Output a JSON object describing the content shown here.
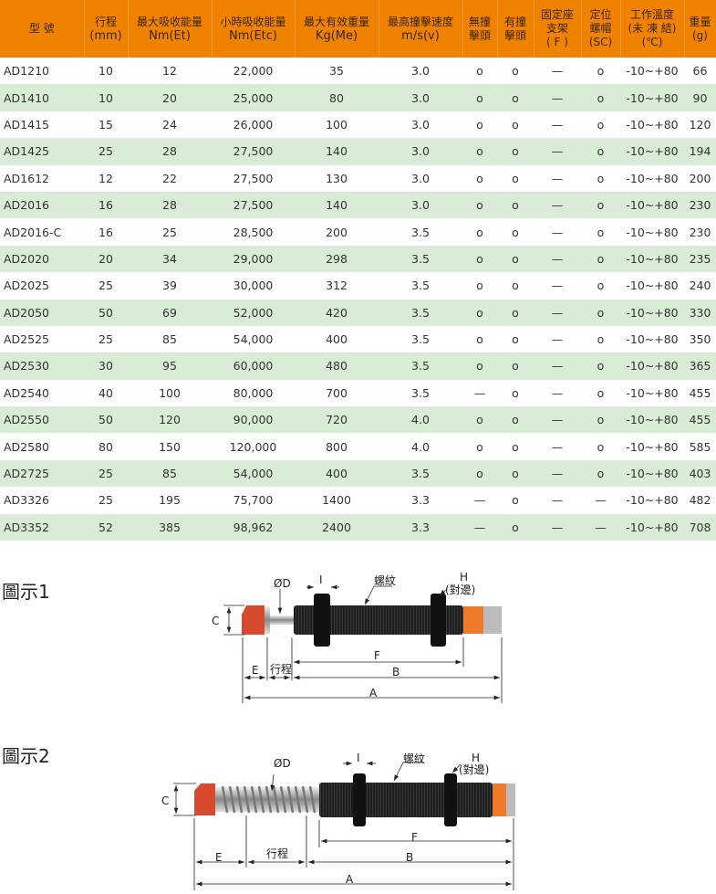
{
  "table": {
    "headers": [
      [
        "型 號"
      ],
      [
        "行程",
        "(mm)"
      ],
      [
        "最大吸收能量",
        "Nm(Et)"
      ],
      [
        "小時吸收能量",
        "Nm(Etc)"
      ],
      [
        "最大有效重量",
        "Kg(Me)"
      ],
      [
        "最高撞擊速度",
        "m/s(v)"
      ],
      [
        "無撞",
        "擊頭"
      ],
      [
        "有撞",
        "擊頭"
      ],
      [
        "固定座",
        "支架",
        "( F )"
      ],
      [
        "定位",
        "螺帽",
        "(SC)"
      ],
      [
        "工作溫度",
        "(未 凍 結)",
        "(℃)"
      ],
      [
        "重量",
        "(g)"
      ]
    ],
    "rows": [
      [
        "AD1210",
        "10",
        "12",
        "22,000",
        "35",
        "3.0",
        "o",
        "o",
        "—",
        "o",
        "-10~+80",
        "66"
      ],
      [
        "AD1410",
        "10",
        "20",
        "25,000",
        "80",
        "3.0",
        "o",
        "o",
        "—",
        "o",
        "-10~+80",
        "90"
      ],
      [
        "AD1415",
        "15",
        "24",
        "26,000",
        "100",
        "3.0",
        "o",
        "o",
        "—",
        "o",
        "-10~+80",
        "120"
      ],
      [
        "AD1425",
        "25",
        "28",
        "27,500",
        "140",
        "3.0",
        "o",
        "o",
        "—",
        "o",
        "-10~+80",
        "194"
      ],
      [
        "AD1612",
        "12",
        "22",
        "27,500",
        "130",
        "3.0",
        "o",
        "o",
        "—",
        "o",
        "-10~+80",
        "200"
      ],
      [
        "AD2016",
        "16",
        "28",
        "27,500",
        "140",
        "3.0",
        "o",
        "o",
        "—",
        "o",
        "-10~+80",
        "230"
      ],
      [
        "AD2016-C",
        "16",
        "25",
        "28,500",
        "200",
        "3.5",
        "o",
        "o",
        "—",
        "o",
        "-10~+80",
        "230"
      ],
      [
        "AD2020",
        "20",
        "34",
        "29,000",
        "298",
        "3.5",
        "o",
        "o",
        "—",
        "o",
        "-10~+80",
        "235"
      ],
      [
        "AD2025",
        "25",
        "39",
        "30,000",
        "312",
        "3.5",
        "o",
        "o",
        "—",
        "o",
        "-10~+80",
        "240"
      ],
      [
        "AD2050",
        "50",
        "69",
        "52,000",
        "420",
        "3.5",
        "o",
        "o",
        "—",
        "o",
        "-10~+80",
        "330"
      ],
      [
        "AD2525",
        "25",
        "85",
        "54,000",
        "400",
        "3.5",
        "o",
        "o",
        "—",
        "o",
        "-10~+80",
        "350"
      ],
      [
        "AD2530",
        "30",
        "95",
        "60,000",
        "480",
        "3.5",
        "o",
        "o",
        "—",
        "o",
        "-10~+80",
        "365"
      ],
      [
        "AD2540",
        "40",
        "100",
        "80,000",
        "700",
        "3.5",
        "—",
        "o",
        "—",
        "o",
        "-10~+80",
        "455"
      ],
      [
        "AD2550",
        "50",
        "120",
        "90,000",
        "720",
        "4.0",
        "o",
        "o",
        "—",
        "o",
        "-10~+80",
        "455"
      ],
      [
        "AD2580",
        "80",
        "150",
        "120,000",
        "800",
        "4.0",
        "o",
        "o",
        "—",
        "o",
        "-10~+80",
        "585"
      ],
      [
        "AD2725",
        "25",
        "85",
        "54,000",
        "400",
        "3.5",
        "o",
        "o",
        "—",
        "o",
        "-10~+80",
        "403"
      ],
      [
        "AD3326",
        "25",
        "195",
        "75,700",
        "1400",
        "3.3",
        "—",
        "o",
        "—",
        "—",
        "-10~+80",
        "482"
      ],
      [
        "AD3352",
        "52",
        "385",
        "98,962",
        "2400",
        "3.3",
        "—",
        "o",
        "—",
        "—",
        "-10~+80",
        "708"
      ]
    ]
  },
  "figure1": {
    "title": "圖示1",
    "labels": {
      "C": "C",
      "D": "ØD",
      "I": "I",
      "thread": "螺紋",
      "H": "H",
      "H_sub": "(對邊)",
      "F": "F",
      "B": "B",
      "E": "E",
      "stroke": "行程",
      "A": "A"
    }
  },
  "figure2": {
    "title": "圖示2",
    "labels": {
      "C": "C",
      "D": "ØD",
      "I": "I",
      "thread": "螺紋",
      "H": "H",
      "H_sub": "(對邊)",
      "F": "F",
      "B": "B",
      "E": "E",
      "stroke": "行程",
      "A": "A"
    }
  },
  "colors": {
    "header": "#ef8300",
    "alt_row": "#d9ecd6",
    "cap": "#d84a2e",
    "body": "#1a1a1a"
  }
}
